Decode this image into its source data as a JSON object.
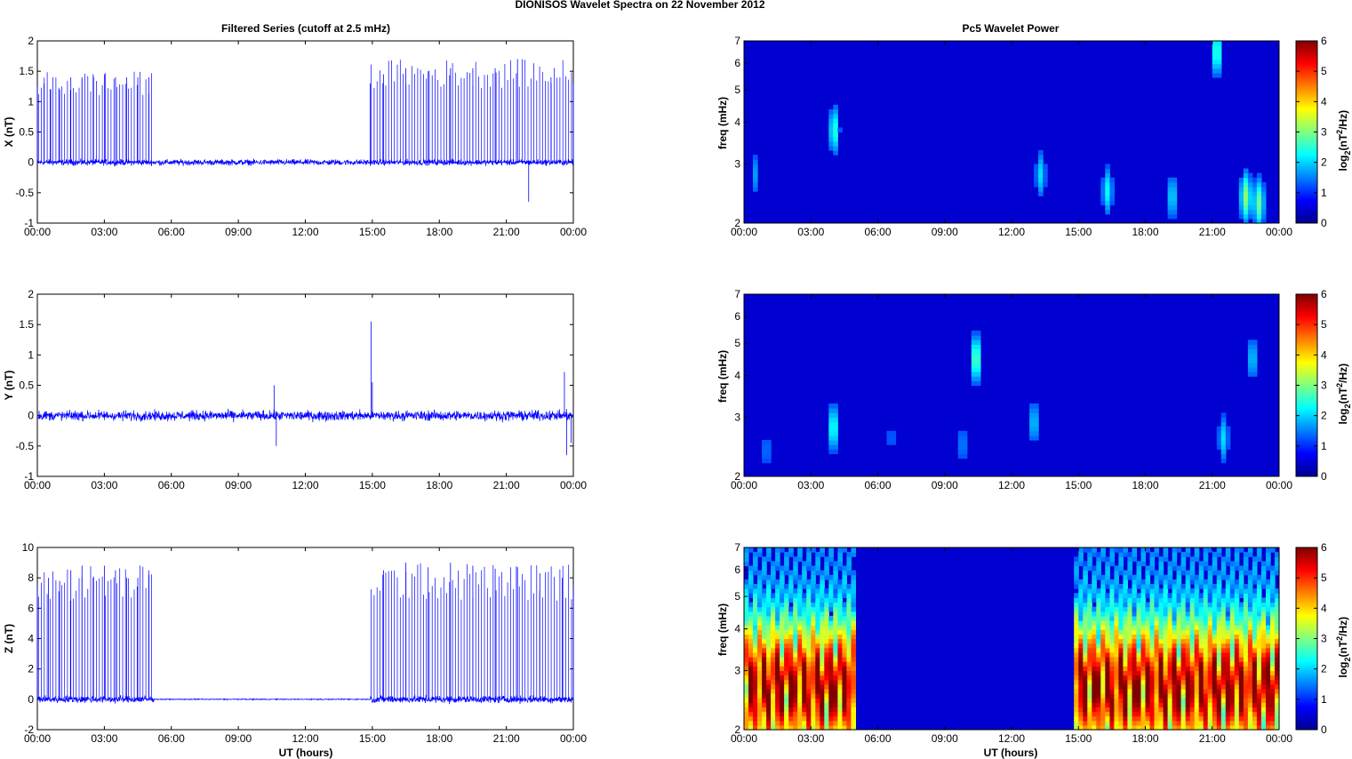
{
  "figure": {
    "suptitle": "DIONISOS Wavelet Spectra on 22 November  2012",
    "left_title": "Filtered Series (cutoff at 2.5 mHz)",
    "right_title": "Pc5 Wavelet Power",
    "xlabel": "UT (hours)",
    "colorbar_label": "log2(nT2/Hz)",
    "colorbar_label_parts": {
      "a": "log",
      "b": "2",
      "c": "(nT",
      "d": "2",
      "e": "/Hz)"
    },
    "colorbar_ticks": [
      0,
      1,
      2,
      3,
      4,
      5,
      6
    ],
    "colormap": "jet",
    "line_color": "#0000ff"
  },
  "chart_data": [
    {
      "type": "line",
      "name": "X",
      "ylabel": "X (nT)",
      "xlim": [
        0,
        24
      ],
      "ylim": [
        -1,
        2
      ],
      "yticks": [
        -1,
        -0.5,
        0,
        0.5,
        1,
        1.5,
        2
      ],
      "ytick_labels": [
        "-1",
        "-0.5",
        "0",
        "0.5",
        "1",
        "1.5",
        "2"
      ],
      "xtick_labels": [
        "00:00",
        "03:00",
        "06:00",
        "09:00",
        "12:00",
        "15:00",
        "18:00",
        "21:00",
        "00:00"
      ],
      "series_color": "#0000ff",
      "baseline_noise": 0.07,
      "spike_windows": [
        [
          0,
          5.2
        ],
        [
          14.9,
          24
        ]
      ],
      "spike_max": [
        1.5,
        1.7
      ],
      "series": [
        {
          "x": [
            0,
            0.3,
            0.6,
            1.0,
            1.5,
            2.0,
            2.5,
            3.0,
            3.5,
            4.0,
            4.5,
            5.0,
            5.2,
            6,
            9,
            12,
            14.9,
            15.5,
            16.5,
            17.5,
            18.5,
            19.5,
            20.5,
            21.5,
            22.0,
            23.0,
            24.0
          ],
          "y": [
            1.25,
            1.3,
            1.2,
            1.2,
            1.4,
            1.4,
            1.45,
            1.45,
            1.4,
            1.4,
            1.4,
            1.4,
            0,
            0.05,
            0.05,
            0.05,
            1.3,
            1.45,
            1.55,
            1.5,
            1.55,
            1.55,
            1.55,
            1.7,
            -0.65,
            1.4,
            1.3
          ]
        }
      ]
    },
    {
      "type": "line",
      "name": "Y",
      "ylabel": "Y (nT)",
      "xlim": [
        0,
        24
      ],
      "ylim": [
        -1,
        2
      ],
      "yticks": [
        -1,
        -0.5,
        0,
        0.5,
        1,
        1.5,
        2
      ],
      "ytick_labels": [
        "-1",
        "-0.5",
        "0",
        "0.5",
        "1",
        "1.5",
        "2"
      ],
      "xtick_labels": [
        "00:00",
        "03:00",
        "06:00",
        "09:00",
        "12:00",
        "15:00",
        "18:00",
        "21:00",
        "00:00"
      ],
      "series_color": "#0000ff",
      "baseline_noise": 0.12,
      "spike_windows": [],
      "series": [
        {
          "x": [
            10.6,
            10.7,
            14.95,
            15.0,
            23.6,
            23.7,
            23.9
          ],
          "y": [
            0.5,
            -0.5,
            1.55,
            0.55,
            0.72,
            -0.65,
            -0.45
          ]
        }
      ]
    },
    {
      "type": "line",
      "name": "Z",
      "ylabel": "Z (nT)",
      "xlim": [
        0,
        24
      ],
      "ylim": [
        -2,
        10
      ],
      "yticks": [
        -2,
        0,
        2,
        4,
        6,
        8,
        10
      ],
      "ytick_labels": [
        "-2",
        "0",
        "2",
        "4",
        "6",
        "8",
        "10"
      ],
      "xtick_labels": [
        "00:00",
        "03:00",
        "06:00",
        "09:00",
        "12:00",
        "15:00",
        "18:00",
        "21:00",
        "00:00"
      ],
      "series_color": "#0000ff",
      "baseline_noise": 0.35,
      "spike_windows": [
        [
          0,
          5.2
        ],
        [
          14.9,
          24
        ]
      ],
      "spike_max": [
        8.9,
        9.0
      ],
      "quiet_window": [
        5.2,
        14.9
      ],
      "series": [
        {
          "x": [
            0,
            0.5,
            1.0,
            1.5,
            2.0,
            2.5,
            3.0,
            3.5,
            4.0,
            4.5,
            5.0,
            5.2,
            10,
            14.9,
            15.5,
            16.5,
            17.5,
            18.5,
            19.5,
            20.5,
            21.5,
            22.5,
            23.5,
            24
          ],
          "y": [
            7.5,
            8,
            7.8,
            8.5,
            8.8,
            8.0,
            8.8,
            8.5,
            8.0,
            8.0,
            8.2,
            0,
            0,
            0.1,
            8.5,
            9.0,
            8.7,
            9.0,
            8.8,
            8.6,
            8.7,
            8.3,
            8.0,
            7.5
          ]
        }
      ]
    },
    {
      "type": "heatmap",
      "name": "X wavelet",
      "ylabel": "freq (mHz)",
      "yscale": "log",
      "xlim": [
        0,
        24
      ],
      "ylim": [
        2,
        7
      ],
      "ytick_labels": [
        "2",
        "3",
        "4",
        "5",
        "6",
        "7"
      ],
      "xtick_labels": [
        "00:00",
        "03:00",
        "06:00",
        "09:00",
        "12:00",
        "15:00",
        "18:00",
        "21:00",
        "00:00"
      ],
      "clim": [
        0,
        6
      ],
      "blobs": [
        {
          "t": 0.5,
          "f": 2.8,
          "power": 1.2
        },
        {
          "t": 4.05,
          "f": 3.8,
          "power": 2.0
        },
        {
          "t": 13.3,
          "f": 2.8,
          "power": 1.6
        },
        {
          "t": 16.3,
          "f": 2.5,
          "power": 1.8
        },
        {
          "t": 19.2,
          "f": 2.4,
          "power": 1.6
        },
        {
          "t": 21.2,
          "f": 6.5,
          "power": 2.2
        },
        {
          "t": 22.5,
          "f": 2.4,
          "power": 2.6
        },
        {
          "t": 23.1,
          "f": 2.3,
          "power": 2.4
        }
      ]
    },
    {
      "type": "heatmap",
      "name": "Y wavelet",
      "ylabel": "freq (mHz)",
      "yscale": "log",
      "xlim": [
        0,
        24
      ],
      "ylim": [
        2,
        7
      ],
      "ytick_labels": [
        "2",
        "3",
        "4",
        "5",
        "6",
        "7"
      ],
      "xtick_labels": [
        "00:00",
        "03:00",
        "06:00",
        "09:00",
        "12:00",
        "15:00",
        "18:00",
        "21:00",
        "00:00"
      ],
      "clim": [
        0,
        6
      ],
      "blobs": [
        {
          "t": 1.0,
          "f": 2.4,
          "power": 1.0
        },
        {
          "t": 4.0,
          "f": 2.8,
          "power": 2.0
        },
        {
          "t": 6.6,
          "f": 2.6,
          "power": 0.9
        },
        {
          "t": 9.8,
          "f": 2.5,
          "power": 1.1
        },
        {
          "t": 10.4,
          "f": 4.5,
          "power": 2.4
        },
        {
          "t": 13.0,
          "f": 2.9,
          "power": 1.5
        },
        {
          "t": 21.5,
          "f": 2.6,
          "power": 1.6
        },
        {
          "t": 22.8,
          "f": 4.5,
          "power": 1.5
        }
      ]
    },
    {
      "type": "heatmap",
      "name": "Z wavelet",
      "ylabel": "freq (mHz)",
      "yscale": "log",
      "xlim": [
        0,
        24
      ],
      "ylim": [
        2,
        7
      ],
      "ytick_labels": [
        "2",
        "3",
        "4",
        "5",
        "6",
        "7"
      ],
      "xtick_labels": [
        "00:00",
        "03:00",
        "06:00",
        "09:00",
        "12:00",
        "15:00",
        "18:00",
        "21:00",
        "00:00"
      ],
      "clim": [
        0,
        6
      ],
      "active_windows": [
        [
          0,
          5.0
        ],
        [
          14.8,
          24
        ]
      ],
      "peak_freq": 2.7,
      "peak_power": 5.2
    }
  ]
}
